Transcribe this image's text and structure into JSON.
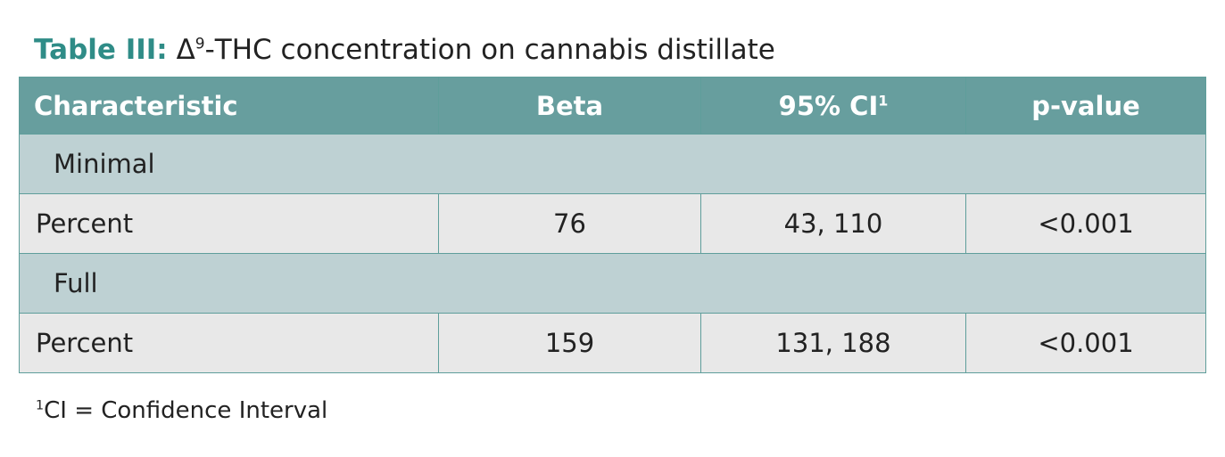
{
  "title": {
    "label": "Table III:",
    "prefix": "Δ",
    "superscript": "9",
    "text": "-THC concentration on cannabis distillate"
  },
  "table": {
    "headers": {
      "characteristic": "Characteristic",
      "beta": "Beta",
      "ci": "95% CI",
      "ci_superscript": "1",
      "p_value": "p-value"
    },
    "groups": [
      {
        "name": "Minimal",
        "row": {
          "characteristic": "Percent",
          "beta": "76",
          "ci": "43, 110",
          "p_value": "<0.001"
        }
      },
      {
        "name": "Full",
        "row": {
          "characteristic": "Percent",
          "beta": "159",
          "ci": "131, 188",
          "p_value": "<0.001"
        }
      }
    ]
  },
  "footnote": {
    "superscript": "1",
    "text": "CI = Confidence Interval"
  }
}
